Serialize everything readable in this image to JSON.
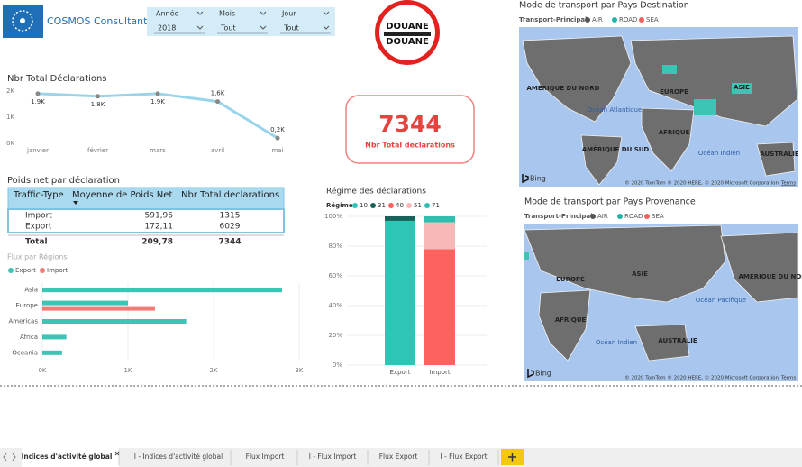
{
  "logo": {
    "text": "COSMOS Consultants"
  },
  "slicers": [
    {
      "label": "Année",
      "value": "2018"
    },
    {
      "label": "Mois",
      "value": "Tout"
    },
    {
      "label": "Jour",
      "value": "Tout"
    }
  ],
  "badge": {
    "line1": "DOUANE",
    "line2": "DOUANE"
  },
  "card": {
    "value": 7344,
    "label": "Nbr Total declarations"
  },
  "table": {
    "title": "Poids net par déclaration",
    "columns": [
      "Traffic-Type",
      "Moyenne de Poids Net",
      "Nbr Total declarations"
    ],
    "rows": [
      [
        "Import",
        "591,96",
        "1315"
      ],
      [
        "Export",
        "172,11",
        "6029"
      ]
    ],
    "total": [
      "Total",
      "209,78",
      "7344"
    ]
  },
  "chart_data": [
    {
      "type": "line",
      "title": "Nbr Total Déclarations",
      "categories": [
        "janvier",
        "février",
        "mars",
        "avril",
        "mai"
      ],
      "values": [
        1900,
        1800,
        1900,
        1600,
        200
      ],
      "value_labels": [
        "1.9K",
        "1.8K",
        "1.9K",
        "1,6K",
        "0,2K"
      ],
      "color": "#9ad4ea",
      "ylim": [
        0,
        2000
      ],
      "yticks": [
        {
          "value": 0,
          "label": "0K"
        },
        {
          "value": 1000,
          "label": "1K"
        },
        {
          "value": 2000,
          "label": "2K"
        }
      ]
    },
    {
      "type": "hbar",
      "title": "Flux par Régions",
      "categories": [
        "Asia",
        "Europe",
        "Americas",
        "Africa",
        "Oceania"
      ],
      "series": [
        {
          "name": "Export",
          "color": "#3cc4b4",
          "values": [
            2800,
            1000,
            1680,
            280,
            230
          ]
        },
        {
          "name": "Import",
          "color": "#f47a76",
          "values": [
            null,
            1316,
            null,
            null,
            null
          ]
        }
      ],
      "xlim": [
        0,
        3000
      ],
      "xticks": [
        {
          "value": 0,
          "label": "0K"
        },
        {
          "value": 1000,
          "label": "1K"
        },
        {
          "value": 2000,
          "label": "2K"
        },
        {
          "value": 3000,
          "label": "3K"
        }
      ],
      "grid": true,
      "legend": "top"
    },
    {
      "type": "stacked100",
      "title": "Régime des déclarations",
      "legend_title": "Régime",
      "categories": [
        "Export",
        "Import"
      ],
      "series": [
        {
          "name": "10",
          "color": "#2ec4b6",
          "values": [
            97,
            null
          ]
        },
        {
          "name": "31",
          "color": "#17635a",
          "values": [
            3,
            null
          ]
        },
        {
          "name": "40",
          "color": "#fd625e",
          "values": [
            null,
            78
          ]
        },
        {
          "name": "51",
          "color": "#f7b9b8",
          "values": [
            null,
            18
          ]
        },
        {
          "name": "71",
          "color": "#30bfae",
          "values": [
            null,
            4
          ]
        }
      ],
      "ylim": [
        0,
        100
      ],
      "yticks": [
        {
          "value": 0,
          "label": "0%"
        },
        {
          "value": 20,
          "label": "20%"
        },
        {
          "value": 40,
          "label": "40%"
        },
        {
          "value": 60,
          "label": "60%"
        },
        {
          "value": 80,
          "label": "80%"
        },
        {
          "value": 100,
          "label": "100%"
        }
      ],
      "grid": true
    }
  ],
  "maps": [
    {
      "title": "Mode de transport par Pays Destination",
      "legend_title": "Transport-Principal",
      "legend": [
        {
          "name": "AIR",
          "color": "#555555"
        },
        {
          "name": "ROAD",
          "color": "#20b5a8"
        },
        {
          "name": "SEA",
          "color": "#f0605d"
        }
      ],
      "labels": [
        "AMÉRIQUE DU NORD",
        "EUROPE",
        "ASIE",
        "Océan Atlantique",
        "AFRIQUE",
        "AMÉRIQUE DU SUD",
        "Océan Indien",
        "AUSTRALIE"
      ],
      "brand": "Bing",
      "attribution": "© 2020 TomTom © 2020 HERE, © 2020 Microsoft Corporation",
      "terms": "Terms"
    },
    {
      "title": "Mode de transport par Pays Provenance",
      "legend_title": "Transport-Principal",
      "legend": [
        {
          "name": "AIR",
          "color": "#555555"
        },
        {
          "name": "ROAD",
          "color": "#20b5a8"
        },
        {
          "name": "SEA",
          "color": "#f0605d"
        }
      ],
      "labels": [
        "ASIE",
        "AMÉRIQUE DU NORD",
        "EUROPE",
        "Océan Pacifique",
        "AFRIQUE",
        "Océan Indien",
        "AUSTRALIE"
      ],
      "brand": "Bing",
      "attribution": "© 2020 TomTom © 2020 HERE, © 2020 Microsoft Corporation",
      "terms": "Terms"
    }
  ],
  "tabs": [
    "Indices d'activité global",
    "I - Indices d'activité global",
    "Flux Import",
    "I - Flux Import",
    "Flux Export",
    "I - Flux Export"
  ]
}
